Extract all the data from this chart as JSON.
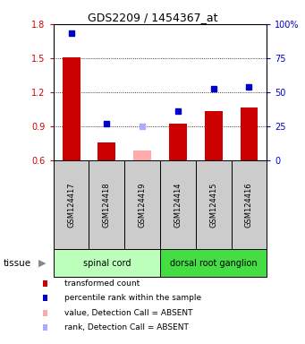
{
  "title": "GDS2209 / 1454367_at",
  "samples": [
    "GSM124417",
    "GSM124418",
    "GSM124419",
    "GSM124414",
    "GSM124415",
    "GSM124416"
  ],
  "bar_values": [
    1.505,
    0.755,
    0.685,
    0.92,
    1.03,
    1.06
  ],
  "bar_colors": [
    "#cc0000",
    "#cc0000",
    "#ffaaaa",
    "#cc0000",
    "#cc0000",
    "#cc0000"
  ],
  "dot_values_left": [
    1.72,
    0.92,
    0.895,
    1.03,
    1.23,
    1.245
  ],
  "dot_colors": [
    "#0000cc",
    "#0000cc",
    "#aaaaff",
    "#0000cc",
    "#0000cc",
    "#0000cc"
  ],
  "ylim_left": [
    0.6,
    1.8
  ],
  "yticks_left": [
    0.6,
    0.9,
    1.2,
    1.5,
    1.8
  ],
  "yticks_right": [
    0,
    25,
    50,
    75,
    100
  ],
  "ylim_right": [
    0,
    100
  ],
  "left_color": "#cc0000",
  "right_color": "#0000cc",
  "groups": [
    {
      "label": "spinal cord",
      "start": 0,
      "end": 3,
      "color": "#bbffbb"
    },
    {
      "label": "dorsal root ganglion",
      "start": 3,
      "end": 6,
      "color": "#44dd44"
    }
  ],
  "legend_items": [
    {
      "color": "#cc0000",
      "label": "transformed count"
    },
    {
      "color": "#0000cc",
      "label": "percentile rank within the sample"
    },
    {
      "color": "#ffaaaa",
      "label": "value, Detection Call = ABSENT"
    },
    {
      "color": "#aaaaff",
      "label": "rank, Detection Call = ABSENT"
    }
  ],
  "bg_color": "#cccccc",
  "plot_bg": "#ffffff",
  "bar_width": 0.5
}
